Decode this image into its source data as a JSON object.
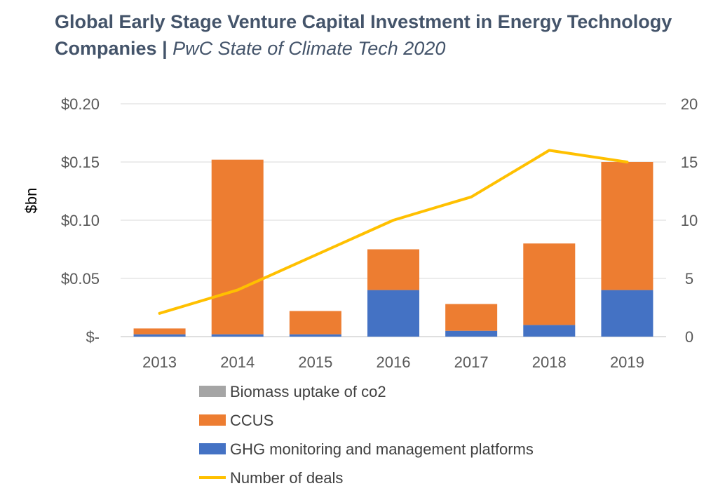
{
  "title": {
    "main": "Global Early Stage Venture Capital Investment in Energy Technology Companies",
    "separator": "|",
    "subtitle": "PwC State of Climate Tech 2020"
  },
  "chart_data": {
    "type": "bar",
    "stacked": true,
    "categories": [
      "2013",
      "2014",
      "2015",
      "2016",
      "2017",
      "2018",
      "2019"
    ],
    "series": [
      {
        "name": "Biomass uptake of co2",
        "type": "bar",
        "axis": "left",
        "color": "#a5a5a5",
        "values": [
          0,
          0,
          0,
          0,
          0,
          0,
          0
        ]
      },
      {
        "name": "CCUS",
        "type": "bar",
        "axis": "left",
        "color": "#ed7d31",
        "values": [
          0.005,
          0.15,
          0.02,
          0.035,
          0.023,
          0.07,
          0.11
        ]
      },
      {
        "name": "GHG monitoring and management platforms",
        "type": "bar",
        "axis": "left",
        "color": "#4472c4",
        "values": [
          0.002,
          0.002,
          0.002,
          0.04,
          0.005,
          0.01,
          0.04
        ]
      },
      {
        "name": "Number of deals",
        "type": "line",
        "axis": "right",
        "color": "#ffc000",
        "values": [
          2,
          4,
          7,
          10,
          12,
          16,
          15
        ]
      }
    ],
    "ylabel": "$bn",
    "ylim": [
      0,
      0.2
    ],
    "yticks": [
      "$-",
      "$0.05",
      "$0.10",
      "$0.15",
      "$0.20"
    ],
    "y2lim": [
      0,
      20
    ],
    "y2ticks": [
      "0",
      "5",
      "10",
      "15",
      "20"
    ],
    "grid": true,
    "legend_position": "bottom"
  }
}
